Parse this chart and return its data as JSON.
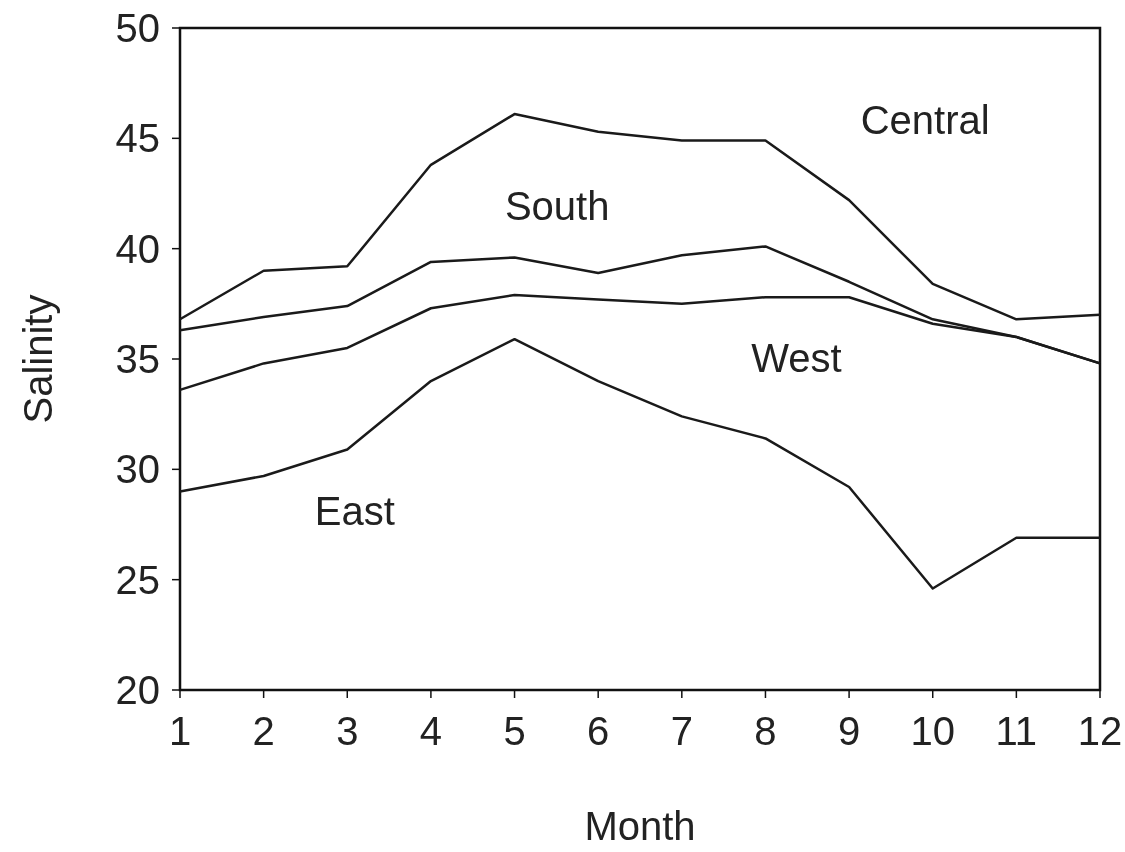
{
  "chart_data": {
    "type": "line",
    "xlabel": "Month",
    "ylabel": "Salinity",
    "x": [
      1,
      2,
      3,
      4,
      5,
      6,
      7,
      8,
      9,
      10,
      11,
      12
    ],
    "xlim": [
      1,
      12
    ],
    "xticks": [
      1,
      2,
      3,
      4,
      5,
      6,
      7,
      8,
      9,
      10,
      11,
      12
    ],
    "ylim": [
      20,
      50
    ],
    "yticks": [
      20,
      25,
      30,
      35,
      40,
      45,
      50
    ],
    "grid": false,
    "marker": "none",
    "line_style": "solid",
    "series": [
      {
        "name": "Central",
        "color": "#1a1a1a",
        "values": [
          36.8,
          39.0,
          39.2,
          43.8,
          46.1,
          45.3,
          44.9,
          44.9,
          42.2,
          38.4,
          36.8,
          37.0
        ]
      },
      {
        "name": "South",
        "color": "#1a1a1a",
        "values": [
          36.3,
          36.9,
          37.4,
          39.4,
          39.6,
          38.9,
          39.7,
          40.1,
          38.5,
          36.8,
          36.0,
          34.8
        ]
      },
      {
        "name": "West",
        "color": "#1a1a1a",
        "values": [
          33.6,
          34.8,
          35.5,
          37.3,
          37.9,
          37.7,
          37.5,
          37.8,
          37.8,
          36.6,
          36.0,
          34.8
        ]
      },
      {
        "name": "East",
        "color": "#1a1a1a",
        "values": [
          29.0,
          29.7,
          30.9,
          34.0,
          35.9,
          34.0,
          32.4,
          31.4,
          29.2,
          24.6,
          26.9,
          26.9
        ]
      }
    ]
  }
}
